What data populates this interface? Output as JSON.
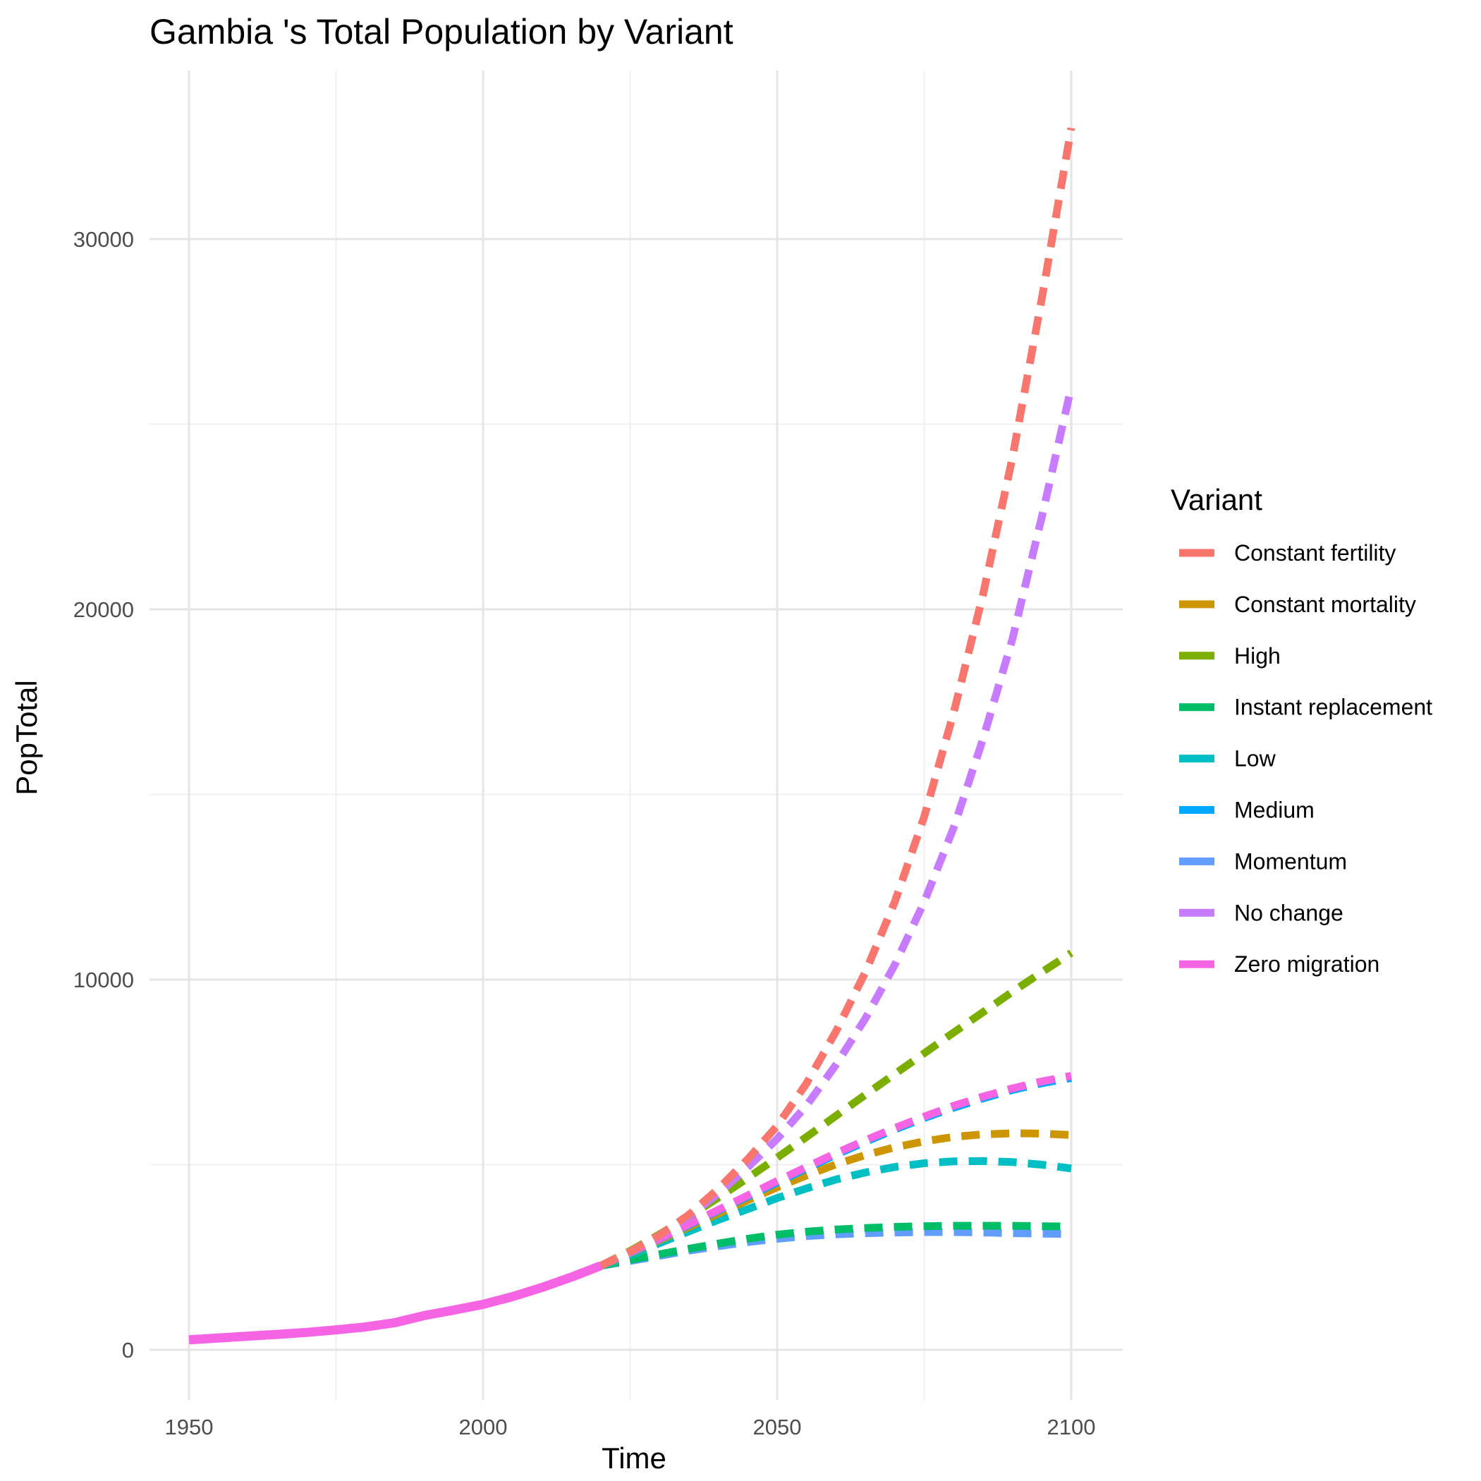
{
  "chart_data": {
    "type": "line",
    "title": "Gambia 's Total Population by Variant",
    "xlabel": "Time",
    "ylabel": "PopTotal",
    "xlim": [
      1950,
      2100
    ],
    "ylim": [
      0,
      33000
    ],
    "x_ticks": [
      "1950",
      "2000",
      "2050",
      "2100"
    ],
    "y_ticks": [
      "0",
      "10000",
      "20000",
      "30000"
    ],
    "grid": true,
    "legend_title": "Variant",
    "legend_position": "right",
    "historical": {
      "variant": "Zero migration",
      "color": "#F564E3",
      "x": [
        1950,
        1955,
        1960,
        1965,
        1970,
        1975,
        1980,
        1985,
        1990,
        1995,
        2000,
        2005,
        2010,
        2015,
        2020
      ],
      "y": [
        271,
        318,
        369,
        418,
        470,
        540,
        618,
        734,
        925,
        1073,
        1229,
        1437,
        1683,
        1964,
        2270
      ]
    },
    "series": [
      {
        "name": "Constant fertility",
        "color": "#F8766D",
        "x": [
          2020,
          2025,
          2030,
          2035,
          2040,
          2045,
          2050,
          2055,
          2060,
          2065,
          2070,
          2075,
          2080,
          2085,
          2090,
          2095,
          2100
        ],
        "y": [
          2270,
          2650,
          3100,
          3650,
          4350,
          5150,
          6050,
          7200,
          8600,
          10200,
          12100,
          14400,
          17200,
          20400,
          24100,
          28400,
          33000
        ]
      },
      {
        "name": "Constant mortality",
        "color": "#CD9600",
        "x": [
          2020,
          2025,
          2030,
          2035,
          2040,
          2045,
          2050,
          2055,
          2060,
          2065,
          2070,
          2075,
          2080,
          2085,
          2090,
          2095,
          2100
        ],
        "y": [
          2270,
          2610,
          2960,
          3320,
          3680,
          4040,
          4390,
          4710,
          5010,
          5260,
          5470,
          5630,
          5750,
          5820,
          5850,
          5840,
          5800
        ]
      },
      {
        "name": "High",
        "color": "#7CAE00",
        "x": [
          2020,
          2025,
          2030,
          2035,
          2040,
          2045,
          2050,
          2055,
          2060,
          2065,
          2070,
          2075,
          2080,
          2085,
          2090,
          2095,
          2100
        ],
        "y": [
          2270,
          2670,
          3120,
          3600,
          4110,
          4640,
          5190,
          5750,
          6320,
          6890,
          7450,
          8010,
          8570,
          9120,
          9670,
          10200,
          10720
        ]
      },
      {
        "name": "Instant replacement",
        "color": "#00BE67",
        "x": [
          2020,
          2025,
          2030,
          2035,
          2040,
          2045,
          2050,
          2055,
          2060,
          2065,
          2070,
          2075,
          2080,
          2085,
          2090,
          2095,
          2100
        ],
        "y": [
          2270,
          2430,
          2580,
          2730,
          2870,
          3000,
          3110,
          3190,
          3250,
          3290,
          3320,
          3340,
          3350,
          3350,
          3350,
          3340,
          3330
        ]
      },
      {
        "name": "Low",
        "color": "#00BFC4",
        "x": [
          2020,
          2025,
          2030,
          2035,
          2040,
          2045,
          2050,
          2055,
          2060,
          2065,
          2070,
          2075,
          2080,
          2085,
          2090,
          2095,
          2100
        ],
        "y": [
          2270,
          2560,
          2880,
          3200,
          3510,
          3800,
          4100,
          4360,
          4600,
          4790,
          4940,
          5040,
          5090,
          5100,
          5070,
          5000,
          4900
        ]
      },
      {
        "name": "Medium",
        "color": "#00A9FF",
        "x": [
          2020,
          2025,
          2030,
          2035,
          2040,
          2045,
          2050,
          2055,
          2060,
          2065,
          2070,
          2075,
          2080,
          2085,
          2090,
          2095,
          2100
        ],
        "y": [
          2270,
          2620,
          2990,
          3370,
          3760,
          4140,
          4520,
          4900,
          5270,
          5620,
          5950,
          6260,
          6540,
          6790,
          7020,
          7200,
          7340
        ]
      },
      {
        "name": "Momentum",
        "color": "#619CFF",
        "x": [
          2020,
          2025,
          2030,
          2035,
          2040,
          2045,
          2050,
          2055,
          2060,
          2065,
          2070,
          2075,
          2080,
          2085,
          2090,
          2095,
          2100
        ],
        "y": [
          2270,
          2400,
          2540,
          2680,
          2800,
          2910,
          3000,
          3070,
          3120,
          3150,
          3170,
          3180,
          3180,
          3170,
          3150,
          3140,
          3130
        ]
      },
      {
        "name": "No change",
        "color": "#C77CFF",
        "x": [
          2020,
          2025,
          2030,
          2035,
          2040,
          2045,
          2050,
          2055,
          2060,
          2065,
          2070,
          2075,
          2080,
          2085,
          2090,
          2095,
          2100
        ],
        "y": [
          2270,
          2640,
          3080,
          3600,
          4230,
          4930,
          5700,
          6600,
          7700,
          8950,
          10400,
          12100,
          14100,
          16500,
          19200,
          22500,
          26000
        ]
      },
      {
        "name": "Zero migration",
        "color": "#F564E3",
        "x": [
          2020,
          2025,
          2030,
          2035,
          2040,
          2045,
          2050,
          2055,
          2060,
          2065,
          2070,
          2075,
          2080,
          2085,
          2090,
          2095,
          2100
        ],
        "y": [
          2270,
          2630,
          3000,
          3390,
          3780,
          4170,
          4560,
          4940,
          5310,
          5660,
          5990,
          6300,
          6590,
          6840,
          7060,
          7250,
          7400
        ]
      }
    ]
  }
}
